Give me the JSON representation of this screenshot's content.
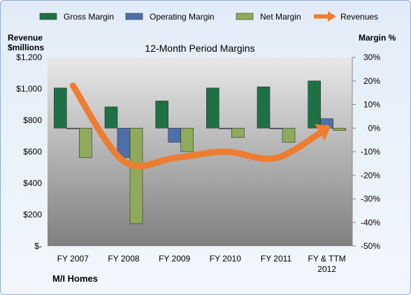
{
  "chart_data": {
    "type": "bar",
    "title": "12-Month Period Margins",
    "company": "M/I Homes",
    "left_axis_title_line1": "Revenue",
    "left_axis_title_line2": "$millions",
    "right_axis_title": "Margin %",
    "categories": [
      {
        "line1": "FY 2007",
        "line2": ""
      },
      {
        "line1": "FY 2008",
        "line2": ""
      },
      {
        "line1": "FY 2009",
        "line2": ""
      },
      {
        "line1": "FY 2010",
        "line2": ""
      },
      {
        "line1": "FY 2011",
        "line2": ""
      },
      {
        "line1": "FY & TTM",
        "line2": "2012"
      }
    ],
    "left_axis": {
      "min": 0,
      "max": 1200,
      "step": 200,
      "tick_labels": [
        "$-",
        "$200",
        "$400",
        "$600",
        "$800",
        "$1,000",
        "$1,200"
      ]
    },
    "right_axis": {
      "min": -50,
      "max": 30,
      "step": 10,
      "tick_labels": [
        "-50%",
        "-40%",
        "-30%",
        "-20%",
        "-10%",
        "0%",
        "10%",
        "20%",
        "30%"
      ]
    },
    "series": [
      {
        "name": "Gross Margin",
        "kind": "bar",
        "axis": "right",
        "color": "#1e7145",
        "values": [
          17,
          9,
          11.5,
          17,
          17.5,
          20
        ]
      },
      {
        "name": "Operating Margin",
        "kind": "bar",
        "axis": "right",
        "color": "#4f6fa8",
        "values": [
          0,
          -12.5,
          -6,
          0,
          0,
          4
        ]
      },
      {
        "name": "Net Margin",
        "kind": "bar",
        "axis": "right",
        "color": "#8faa5a",
        "values": [
          -12.5,
          -40.5,
          -10,
          -4,
          -6,
          -1
        ]
      },
      {
        "name": "Revenues",
        "kind": "line",
        "axis": "left",
        "color": "#ed7d31",
        "values": [
          1020,
          540,
          560,
          600,
          560,
          750
        ]
      }
    ],
    "legend_position": "top",
    "grid": false
  }
}
